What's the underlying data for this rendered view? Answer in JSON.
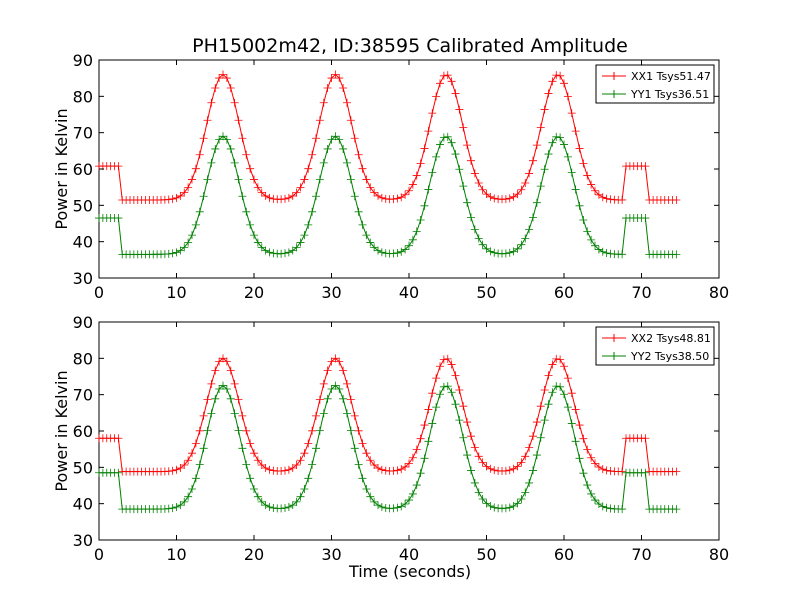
{
  "title": "PH15002m42, ID:38595 Calibrated Amplitude",
  "chart_data": [
    {
      "type": "line",
      "title": "PH15002m42, ID:38595 Calibrated Amplitude",
      "xlabel": "",
      "ylabel": "Power in Kelvin",
      "xlim": [
        0,
        80
      ],
      "ylim": [
        30,
        90
      ],
      "xticks": [
        0,
        10,
        20,
        30,
        40,
        50,
        60,
        70,
        80
      ],
      "yticks": [
        30,
        40,
        50,
        60,
        70,
        80,
        90
      ],
      "legend_position": "top-right",
      "grid": false,
      "markers": "plus",
      "sample_interval": 0.5,
      "series": [
        {
          "name": "XX1 Tsys51.47",
          "color": "#ff0000",
          "profile": {
            "x_start": 0.0,
            "x_end": 74.5,
            "baseline": 51.47,
            "cal_high": 60.8,
            "cal_segments": [
              [
                0.0,
                2.8
              ],
              [
                68.0,
                70.7
              ]
            ],
            "peaks": [
              {
                "center": 16.0,
                "value": 86.0
              },
              {
                "center": 30.5,
                "value": 86.0
              },
              {
                "center": 44.8,
                "value": 86.0
              },
              {
                "center": 59.2,
                "value": 86.0
              }
            ],
            "peak_sigma": 2.1
          }
        },
        {
          "name": "YY1 Tsys36.51",
          "color": "#008000",
          "profile": {
            "x_start": 0.0,
            "x_end": 74.5,
            "baseline": 36.51,
            "cal_high": 46.5,
            "cal_segments": [
              [
                0.0,
                2.8
              ],
              [
                68.0,
                70.7
              ]
            ],
            "peaks": [
              {
                "center": 16.0,
                "value": 69.0
              },
              {
                "center": 30.5,
                "value": 69.0
              },
              {
                "center": 44.8,
                "value": 69.0
              },
              {
                "center": 59.2,
                "value": 69.0
              }
            ],
            "peak_sigma": 2.1
          }
        }
      ]
    },
    {
      "type": "line",
      "title": "",
      "xlabel": "Time (seconds)",
      "ylabel": "Power in Kelvin",
      "xlim": [
        0,
        80
      ],
      "ylim": [
        30,
        90
      ],
      "xticks": [
        0,
        10,
        20,
        30,
        40,
        50,
        60,
        70,
        80
      ],
      "yticks": [
        30,
        40,
        50,
        60,
        70,
        80,
        90
      ],
      "legend_position": "top-right",
      "grid": false,
      "markers": "plus",
      "sample_interval": 0.5,
      "series": [
        {
          "name": "XX2 Tsys48.81",
          "color": "#ff0000",
          "profile": {
            "x_start": 0.0,
            "x_end": 74.5,
            "baseline": 48.81,
            "cal_high": 58.0,
            "cal_segments": [
              [
                0.0,
                2.8
              ],
              [
                68.0,
                70.7
              ]
            ],
            "peaks": [
              {
                "center": 16.0,
                "value": 80.0
              },
              {
                "center": 30.5,
                "value": 80.0
              },
              {
                "center": 44.8,
                "value": 80.0
              },
              {
                "center": 59.2,
                "value": 80.0
              }
            ],
            "peak_sigma": 2.1
          }
        },
        {
          "name": "YY2 Tsys38.50",
          "color": "#008000",
          "profile": {
            "x_start": 0.0,
            "x_end": 74.5,
            "baseline": 38.5,
            "cal_high_segments": [
              48.5,
              48.5
            ],
            "cal_high": 48.5,
            "cal_segments": [
              [
                0.0,
                2.8
              ],
              [
                68.0,
                70.7
              ]
            ],
            "peaks": [
              {
                "center": 16.0,
                "value": 72.5
              },
              {
                "center": 30.5,
                "value": 72.5
              },
              {
                "center": 44.8,
                "value": 72.5
              },
              {
                "center": 59.2,
                "value": 72.5
              }
            ],
            "peak_sigma": 2.1
          }
        }
      ]
    }
  ]
}
